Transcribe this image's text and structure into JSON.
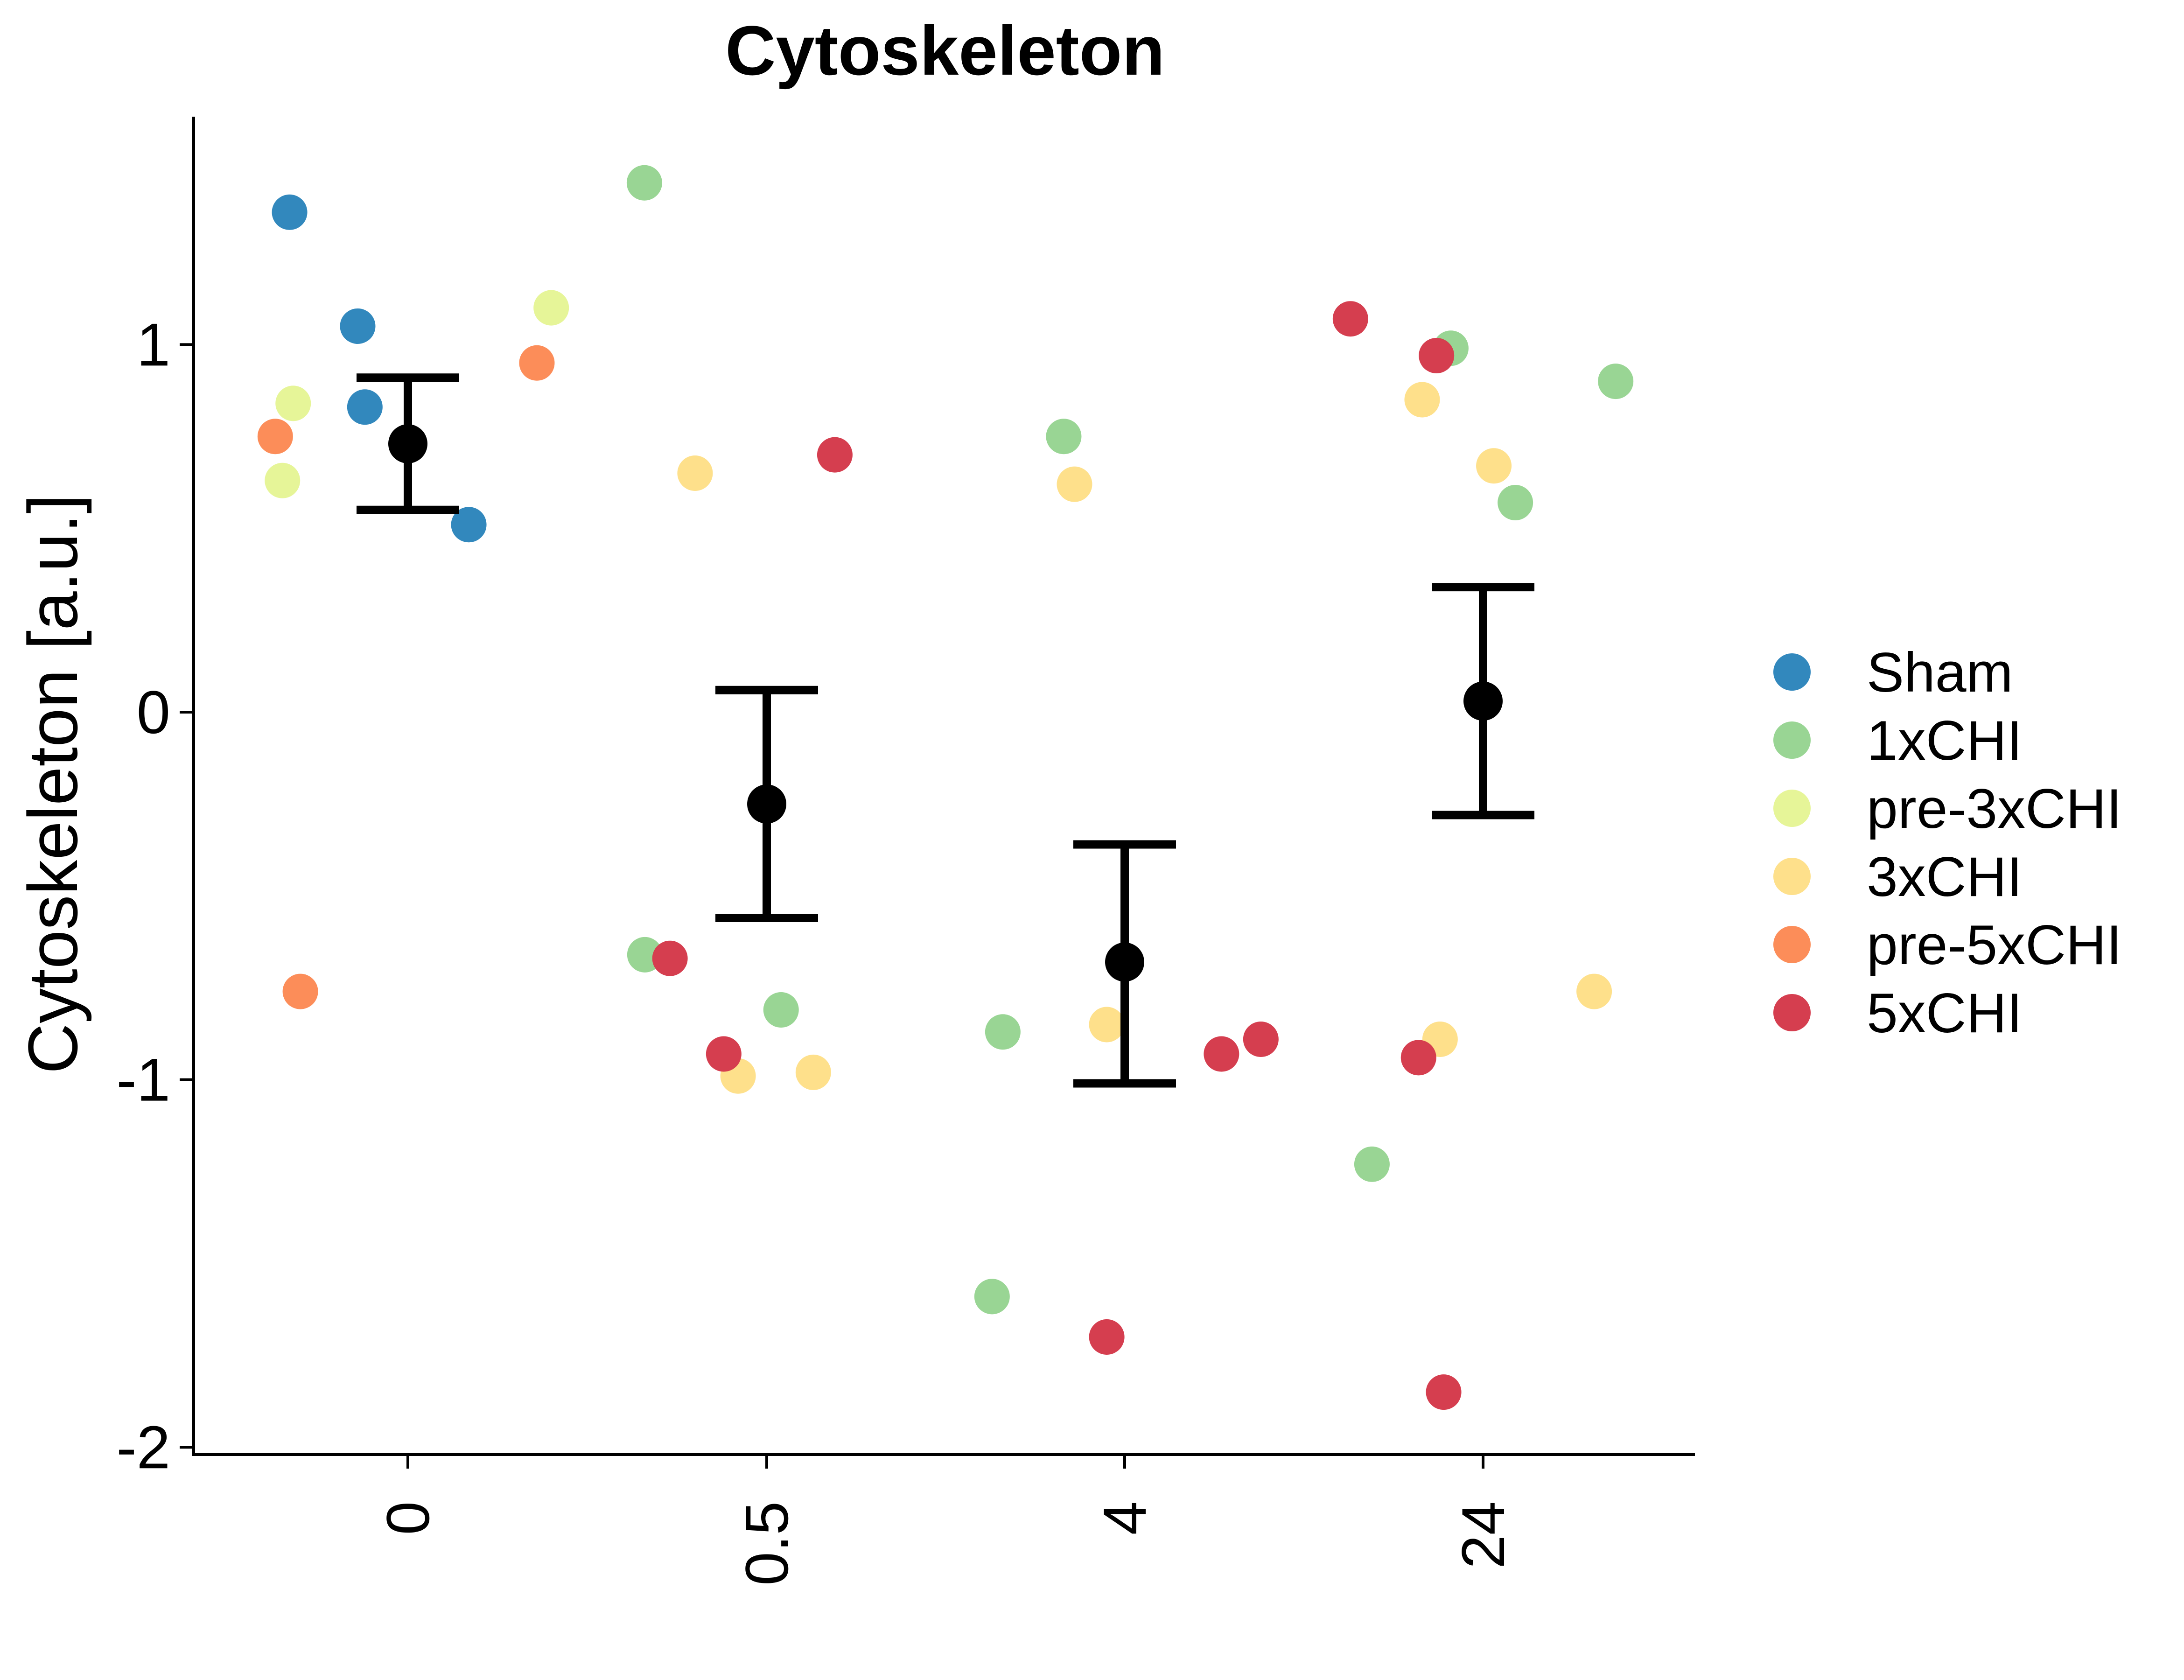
{
  "chart_data": {
    "type": "scatter",
    "title": "Cytoskeleton",
    "xlabel": "",
    "ylabel": "Cytoskeleton [a.u.]",
    "categories": [
      "0",
      "0.5",
      "4",
      "24"
    ],
    "y_ticks": [
      -2,
      -1,
      0,
      1
    ],
    "y_tick_labels": [
      "-2",
      "-1",
      "0",
      "1"
    ],
    "ylim": [
      -2.02,
      1.62
    ],
    "grid": false,
    "legend_placement": "right",
    "summary": [
      {
        "category": "0",
        "mean": 0.73,
        "lower": 0.55,
        "upper": 0.91
      },
      {
        "category": "0.5",
        "mean": -0.25,
        "lower": -0.56,
        "upper": 0.06
      },
      {
        "category": "4",
        "mean": -0.68,
        "lower": -1.01,
        "upper": -0.36
      },
      {
        "category": "24",
        "mean": 0.03,
        "lower": -0.28,
        "upper": 0.34
      }
    ],
    "series": [
      {
        "name": "Sham",
        "color": "#3288BD",
        "points": [
          {
            "category": "0",
            "offset": -0.33,
            "y": 1.36
          },
          {
            "category": "0",
            "offset": -0.14,
            "y": 1.05
          },
          {
            "category": "0",
            "offset": -0.12,
            "y": 0.83
          },
          {
            "category": "0",
            "offset": 0.17,
            "y": 0.51
          }
        ]
      },
      {
        "name": "1xCHI",
        "color": "#99D594",
        "points": [
          {
            "category": "0",
            "offset": 0.66,
            "y": 1.44
          },
          {
            "category": "0.5",
            "offset": -0.34,
            "y": -0.66
          },
          {
            "category": "0.5",
            "offset": 0.04,
            "y": -0.81
          },
          {
            "category": "4",
            "offset": -0.34,
            "y": -0.87
          },
          {
            "category": "4",
            "offset": -0.37,
            "y": -1.59
          },
          {
            "category": "4",
            "offset": -0.17,
            "y": 0.75
          },
          {
            "category": "24",
            "offset": -0.31,
            "y": -1.23
          },
          {
            "category": "24",
            "offset": -0.09,
            "y": 0.99
          },
          {
            "category": "24",
            "offset": 0.09,
            "y": 0.57
          },
          {
            "category": "24",
            "offset": 0.37,
            "y": 0.9
          }
        ]
      },
      {
        "name": "pre-3xCHI",
        "color": "#E6F598",
        "points": [
          {
            "category": "0",
            "offset": -0.32,
            "y": 0.84
          },
          {
            "category": "0",
            "offset": -0.35,
            "y": 0.63
          },
          {
            "category": "0",
            "offset": 0.4,
            "y": 1.1
          }
        ]
      },
      {
        "name": "3xCHI",
        "color": "#FEE08B",
        "points": [
          {
            "category": "0.5",
            "offset": -0.2,
            "y": 0.65
          },
          {
            "category": "0.5",
            "offset": -0.08,
            "y": -0.99
          },
          {
            "category": "0.5",
            "offset": 0.13,
            "y": -0.98
          },
          {
            "category": "4",
            "offset": -0.14,
            "y": 0.62
          },
          {
            "category": "4",
            "offset": -0.05,
            "y": -0.85
          },
          {
            "category": "24",
            "offset": -0.17,
            "y": 0.85
          },
          {
            "category": "24",
            "offset": -0.12,
            "y": -0.89
          },
          {
            "category": "24",
            "offset": 0.03,
            "y": 0.67
          },
          {
            "category": "24",
            "offset": 0.31,
            "y": -0.76
          }
        ]
      },
      {
        "name": "pre-5xCHI",
        "color": "#FC8D59",
        "points": [
          {
            "category": "0",
            "offset": -0.37,
            "y": 0.75
          },
          {
            "category": "0",
            "offset": -0.3,
            "y": -0.76
          },
          {
            "category": "0",
            "offset": 0.36,
            "y": 0.95
          }
        ]
      },
      {
        "name": "5xCHI",
        "color": "#D53E4F",
        "points": [
          {
            "category": "0.5",
            "offset": -0.27,
            "y": -0.67
          },
          {
            "category": "0.5",
            "offset": -0.12,
            "y": -0.93
          },
          {
            "category": "0.5",
            "offset": 0.19,
            "y": 0.7
          },
          {
            "category": "4",
            "offset": -0.05,
            "y": -1.7
          },
          {
            "category": "4",
            "offset": 0.27,
            "y": -0.93
          },
          {
            "category": "4",
            "offset": 0.38,
            "y": -0.89
          },
          {
            "category": "24",
            "offset": -0.37,
            "y": 1.07
          },
          {
            "category": "24",
            "offset": -0.13,
            "y": 0.97
          },
          {
            "category": "24",
            "offset": -0.18,
            "y": -0.94
          },
          {
            "category": "24",
            "offset": -0.11,
            "y": -1.85
          }
        ]
      }
    ]
  }
}
